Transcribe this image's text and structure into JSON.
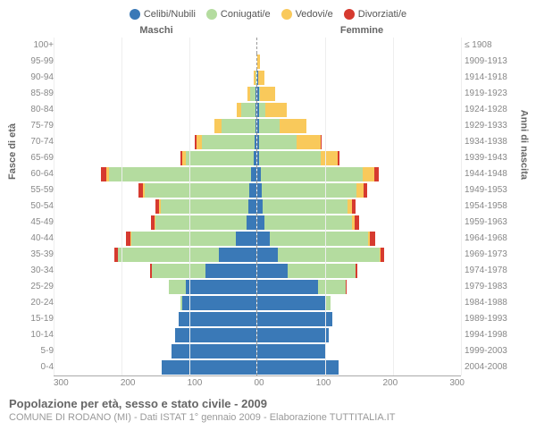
{
  "legend": [
    {
      "label": "Celibi/Nubili",
      "color": "#3a79b7"
    },
    {
      "label": "Coniugati/e",
      "color": "#b4dc9f"
    },
    {
      "label": "Vedovi/e",
      "color": "#f9c95b"
    },
    {
      "label": "Divorziati/e",
      "color": "#d63a2f"
    }
  ],
  "header_maschi": "Maschi",
  "header_femmine": "Femmine",
  "axis_left_title": "Fasce di età",
  "axis_right_title": "Anni di nascita",
  "footer_title": "Popolazione per età, sesso e stato civile - 2009",
  "footer_sub": "COMUNE DI RODANO (MI) - Dati ISTAT 1° gennaio 2009 - Elaborazione TUTTITALIA.IT",
  "x_ticks_left": [
    "300",
    "200",
    "100",
    "0"
  ],
  "x_ticks_right": [
    "0",
    "100",
    "200",
    "300"
  ],
  "x_max": 300,
  "colors": {
    "celibi": "#3a79b7",
    "coniugati": "#b4dc9f",
    "vedovi": "#f9c95b",
    "divorziati": "#d63a2f"
  },
  "grid_color": "#eee",
  "rows": [
    {
      "age": "100+",
      "birth": "≤ 1908",
      "m": {
        "c": 0,
        "co": 0,
        "v": 0,
        "d": 0
      },
      "f": {
        "c": 0,
        "co": 0,
        "v": 0,
        "d": 0
      }
    },
    {
      "age": "95-99",
      "birth": "1909-1913",
      "m": {
        "c": 0,
        "co": 0,
        "v": 0,
        "d": 0
      },
      "f": {
        "c": 0,
        "co": 0,
        "v": 4,
        "d": 0
      }
    },
    {
      "age": "90-94",
      "birth": "1914-1918",
      "m": {
        "c": 0,
        "co": 2,
        "v": 2,
        "d": 0
      },
      "f": {
        "c": 1,
        "co": 0,
        "v": 10,
        "d": 0
      }
    },
    {
      "age": "85-89",
      "birth": "1919-1923",
      "m": {
        "c": 1,
        "co": 8,
        "v": 4,
        "d": 0
      },
      "f": {
        "c": 2,
        "co": 2,
        "v": 22,
        "d": 0
      }
    },
    {
      "age": "80-84",
      "birth": "1924-1928",
      "m": {
        "c": 1,
        "co": 22,
        "v": 6,
        "d": 0
      },
      "f": {
        "c": 2,
        "co": 10,
        "v": 32,
        "d": 0
      }
    },
    {
      "age": "75-79",
      "birth": "1929-1933",
      "m": {
        "c": 2,
        "co": 50,
        "v": 10,
        "d": 0
      },
      "f": {
        "c": 3,
        "co": 30,
        "v": 40,
        "d": 0
      }
    },
    {
      "age": "70-74",
      "birth": "1934-1938",
      "m": {
        "c": 3,
        "co": 78,
        "v": 8,
        "d": 2
      },
      "f": {
        "c": 3,
        "co": 55,
        "v": 35,
        "d": 2
      }
    },
    {
      "age": "65-69",
      "birth": "1939-1943",
      "m": {
        "c": 4,
        "co": 100,
        "v": 6,
        "d": 2
      },
      "f": {
        "c": 3,
        "co": 90,
        "v": 25,
        "d": 3
      }
    },
    {
      "age": "60-64",
      "birth": "1944-1948",
      "m": {
        "c": 8,
        "co": 210,
        "v": 4,
        "d": 8
      },
      "f": {
        "c": 5,
        "co": 150,
        "v": 18,
        "d": 6
      }
    },
    {
      "age": "55-59",
      "birth": "1949-1953",
      "m": {
        "c": 10,
        "co": 155,
        "v": 3,
        "d": 6
      },
      "f": {
        "c": 6,
        "co": 140,
        "v": 10,
        "d": 6
      }
    },
    {
      "age": "50-54",
      "birth": "1954-1958",
      "m": {
        "c": 12,
        "co": 130,
        "v": 2,
        "d": 6
      },
      "f": {
        "c": 8,
        "co": 125,
        "v": 6,
        "d": 6
      }
    },
    {
      "age": "45-49",
      "birth": "1959-1963",
      "m": {
        "c": 15,
        "co": 135,
        "v": 1,
        "d": 5
      },
      "f": {
        "c": 10,
        "co": 130,
        "v": 4,
        "d": 6
      }
    },
    {
      "age": "40-44",
      "birth": "1964-1968",
      "m": {
        "c": 30,
        "co": 155,
        "v": 1,
        "d": 7
      },
      "f": {
        "c": 18,
        "co": 145,
        "v": 3,
        "d": 8
      }
    },
    {
      "age": "35-39",
      "birth": "1969-1973",
      "m": {
        "c": 55,
        "co": 150,
        "v": 0,
        "d": 5
      },
      "f": {
        "c": 30,
        "co": 150,
        "v": 1,
        "d": 6
      }
    },
    {
      "age": "30-34",
      "birth": "1974-1978",
      "m": {
        "c": 75,
        "co": 80,
        "v": 0,
        "d": 2
      },
      "f": {
        "c": 45,
        "co": 100,
        "v": 0,
        "d": 3
      }
    },
    {
      "age": "25-29",
      "birth": "1979-1983",
      "m": {
        "c": 105,
        "co": 25,
        "v": 0,
        "d": 0
      },
      "f": {
        "c": 90,
        "co": 40,
        "v": 0,
        "d": 1
      }
    },
    {
      "age": "20-24",
      "birth": "1984-1988",
      "m": {
        "c": 110,
        "co": 3,
        "v": 0,
        "d": 0
      },
      "f": {
        "c": 100,
        "co": 8,
        "v": 0,
        "d": 0
      }
    },
    {
      "age": "15-19",
      "birth": "1989-1993",
      "m": {
        "c": 115,
        "co": 0,
        "v": 0,
        "d": 0
      },
      "f": {
        "c": 110,
        "co": 0,
        "v": 0,
        "d": 0
      }
    },
    {
      "age": "10-14",
      "birth": "1994-1998",
      "m": {
        "c": 120,
        "co": 0,
        "v": 0,
        "d": 0
      },
      "f": {
        "c": 105,
        "co": 0,
        "v": 0,
        "d": 0
      }
    },
    {
      "age": "5-9",
      "birth": "1999-2003",
      "m": {
        "c": 125,
        "co": 0,
        "v": 0,
        "d": 0
      },
      "f": {
        "c": 100,
        "co": 0,
        "v": 0,
        "d": 0
      }
    },
    {
      "age": "0-4",
      "birth": "2004-2008",
      "m": {
        "c": 140,
        "co": 0,
        "v": 0,
        "d": 0
      },
      "f": {
        "c": 120,
        "co": 0,
        "v": 0,
        "d": 0
      }
    }
  ]
}
